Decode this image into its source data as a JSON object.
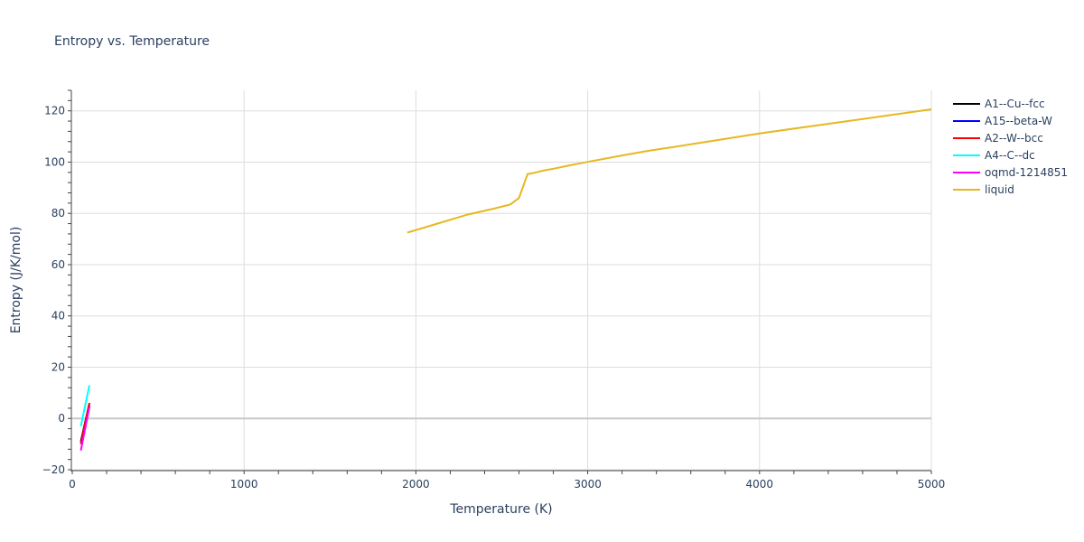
{
  "chart_data": {
    "type": "line",
    "title": "Entropy vs. Temperature",
    "xlabel": "Temperature (K)",
    "ylabel": "Entropy (J/K/mol)",
    "xlim": [
      0,
      5000
    ],
    "ylim": [
      -20,
      128
    ],
    "x_ticks": [
      0,
      1000,
      2000,
      3000,
      4000,
      5000
    ],
    "x_tick_labels": [
      "0",
      "1000",
      "2000",
      "3000",
      "4000",
      "5000"
    ],
    "y_ticks": [
      -20,
      0,
      20,
      40,
      60,
      80,
      100,
      120
    ],
    "y_tick_labels": [
      "−20",
      "0",
      "20",
      "40",
      "60",
      "80",
      "100",
      "120"
    ],
    "grid": true,
    "legend_position": "right",
    "series": [
      {
        "name": "A1--Cu--fcc",
        "color": "#000000",
        "x": [
          50,
          100
        ],
        "y": [
          -9,
          6
        ]
      },
      {
        "name": "A15--beta-W",
        "color": "#0000ff",
        "x": [
          50,
          100
        ],
        "y": [
          -10,
          5
        ]
      },
      {
        "name": "A2--W--bcc",
        "color": "#ff0000",
        "x": [
          50,
          100
        ],
        "y": [
          -10,
          6
        ]
      },
      {
        "name": "A4--C--dc",
        "color": "#00ffff",
        "x": [
          50,
          100
        ],
        "y": [
          -3,
          13
        ]
      },
      {
        "name": "oqmd-1214851",
        "color": "#ff00ff",
        "x": [
          50,
          100
        ],
        "y": [
          -12.5,
          4.5
        ]
      },
      {
        "name": "liquid",
        "color": "#e6b820",
        "x": [
          1950,
          2100,
          2300,
          2450,
          2550,
          2600,
          2650,
          2700,
          2750,
          2800,
          2900,
          3000,
          3200,
          3350,
          3500,
          3700,
          4000,
          4300,
          4600,
          4800,
          5000
        ],
        "y": [
          72.5,
          75.5,
          79.5,
          81.8,
          83.5,
          86,
          95.3,
          96,
          96.8,
          97.4,
          98.8,
          100.1,
          102.6,
          104.4,
          105.9,
          108,
          111.2,
          114,
          116.8,
          118.7,
          120.6
        ]
      }
    ]
  }
}
